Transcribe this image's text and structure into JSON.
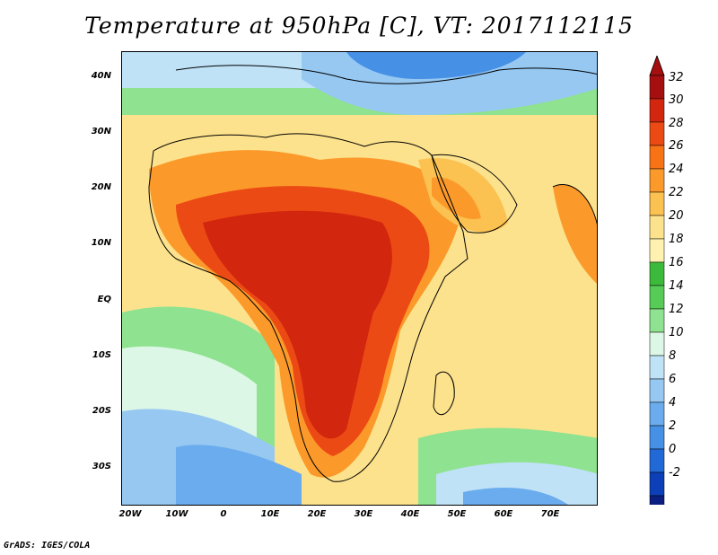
{
  "title": "Temperature at 950hPa [C], VT: 2017112115",
  "footer": "GrADS: IGES/COLA",
  "map": {
    "region": "Africa and surroundings",
    "lat_labels": [
      "40N",
      "30N",
      "20N",
      "10N",
      "EQ",
      "10S",
      "20S",
      "30S"
    ],
    "lon_labels": [
      "20W",
      "10W",
      "0",
      "10E",
      "20E",
      "30E",
      "40E",
      "50E",
      "60E",
      "70E"
    ]
  },
  "colorbar": {
    "labels": [
      "32",
      "30",
      "28",
      "26",
      "24",
      "22",
      "20",
      "18",
      "16",
      "14",
      "12",
      "10",
      "8",
      "6",
      "4",
      "2",
      "0",
      "-2"
    ],
    "colors": [
      "#a50f0f",
      "#d3260f",
      "#ec4a14",
      "#f77316",
      "#fb9a2a",
      "#fcc251",
      "#fde28d",
      "#fff2b0",
      "#3cba3c",
      "#56cc56",
      "#8fe28f",
      "#ddf7e6",
      "#bfe2f7",
      "#96c8f2",
      "#6aaced",
      "#4690e6",
      "#2269d8",
      "#0d3fb8",
      "#0a1f80"
    ],
    "lower_arrow_color": "#d8d8f8",
    "upper_arrow_color": "#a50f0f"
  }
}
